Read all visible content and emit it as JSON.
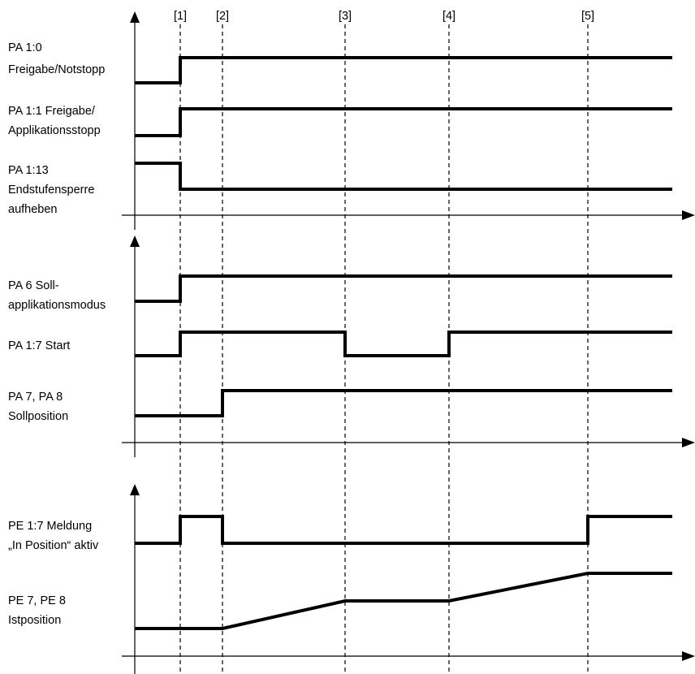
{
  "markers": [
    "[1]",
    "[2]",
    "[3]",
    "[4]",
    "[5]"
  ],
  "panels": [
    {
      "signals": [
        {
          "label": [
            "PA 1:0",
            "Freigabe/Notstopp"
          ],
          "wave": [
            [
              0,
              0
            ],
            [
              1,
              1
            ],
            [
              6,
              1
            ]
          ]
        },
        {
          "label": [
            "PA 1:1 Freigabe/",
            "Applikationsstopp"
          ],
          "wave": [
            [
              0,
              0
            ],
            [
              1,
              1
            ],
            [
              6,
              1
            ]
          ]
        },
        {
          "label": [
            "PA 1:13",
            "Endstufensperre",
            "aufheben"
          ],
          "wave": [
            [
              0,
              1
            ],
            [
              1,
              0
            ],
            [
              6,
              0
            ]
          ]
        }
      ]
    },
    {
      "signals": [
        {
          "label": [
            "PA 6 Soll-",
            "applikationsmodus"
          ],
          "wave": [
            [
              0,
              0
            ],
            [
              1,
              1
            ],
            [
              6,
              1
            ]
          ]
        },
        {
          "label": [
            "PA 1:7 Start"
          ],
          "wave": [
            [
              0,
              0
            ],
            [
              1,
              1
            ],
            [
              3,
              0
            ],
            [
              4,
              1
            ],
            [
              6,
              1
            ]
          ]
        },
        {
          "label": [
            "PA 7, PA 8",
            "Sollposition"
          ],
          "wave": [
            [
              0,
              0
            ],
            [
              2,
              1
            ],
            [
              6,
              1
            ]
          ]
        }
      ]
    },
    {
      "signals": [
        {
          "label": [
            "PE 1:7 Meldung",
            "„In Position“ aktiv"
          ],
          "wave": [
            [
              0,
              0
            ],
            [
              1,
              1
            ],
            [
              2,
              0
            ],
            [
              5,
              1
            ],
            [
              6,
              1
            ]
          ]
        },
        {
          "label": [
            "PE 7, PE 8",
            "Istposition"
          ],
          "ramp": true,
          "wave": [
            [
              0,
              0
            ],
            [
              2,
              0
            ],
            [
              3,
              0.5
            ],
            [
              4,
              0.5
            ],
            [
              5,
              1
            ],
            [
              6,
              1
            ]
          ]
        }
      ]
    }
  ]
}
